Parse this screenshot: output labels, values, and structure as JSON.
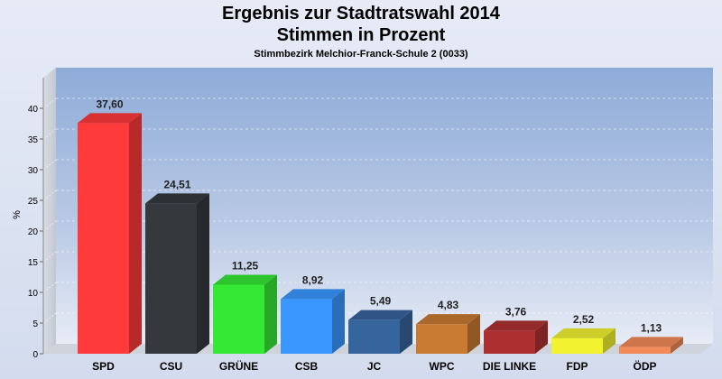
{
  "title": "Ergebnis zur Stadtratswahl 2014",
  "subtitle": "Stimmen in Prozent",
  "district": "Stimmbezirk Melchior-Franck-Schule 2 (0033)",
  "chart_data": {
    "type": "bar",
    "ylabel": "%",
    "ylim": [
      0,
      45
    ],
    "yticks": [
      0,
      5,
      10,
      15,
      20,
      25,
      30,
      35,
      40
    ],
    "grid": true,
    "categories": [
      "SPD",
      "CSU",
      "GRÜNE",
      "CSB",
      "JC",
      "WPC",
      "DIE LINKE",
      "FDP",
      "ÖDP"
    ],
    "values": [
      37.6,
      24.51,
      11.25,
      8.92,
      5.49,
      4.83,
      3.76,
      2.52,
      1.13
    ],
    "value_labels": [
      "37,60",
      "24,51",
      "11,25",
      "8,92",
      "5,49",
      "4,83",
      "3,76",
      "2,52",
      "1,13"
    ],
    "colors": [
      "#ff3a3a",
      "#35383d",
      "#35e835",
      "#3a97ff",
      "#36649c",
      "#c97a33",
      "#ad3030",
      "#f2f231",
      "#f28a58"
    ]
  }
}
